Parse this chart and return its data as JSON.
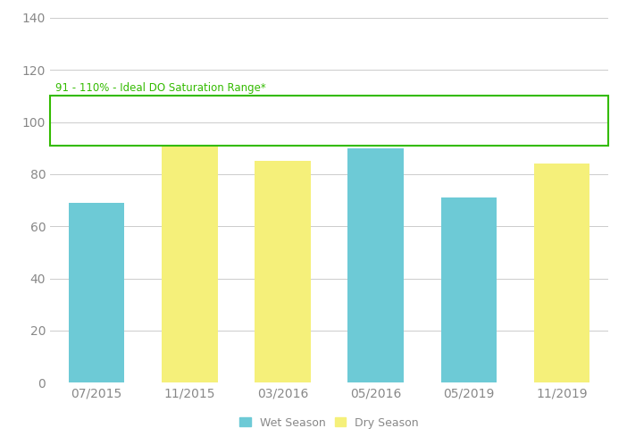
{
  "categories": [
    "07/2015",
    "11/2015",
    "03/2016",
    "05/2016",
    "05/2019",
    "11/2019"
  ],
  "values": [
    69,
    91,
    85,
    90,
    71,
    84
  ],
  "colors": [
    "#6DCAD6",
    "#F5F07A",
    "#F5F07A",
    "#6DCAD6",
    "#6DCAD6",
    "#F5F07A"
  ],
  "ylim": [
    0,
    140
  ],
  "yticks": [
    0,
    20,
    40,
    60,
    80,
    100,
    120,
    140
  ],
  "ideal_range_min": 91,
  "ideal_range_max": 110,
  "ideal_label": "91 - 110% - Ideal DO Saturation Range*",
  "ideal_color": "#33BB00",
  "legend_wet": "Wet Season",
  "legend_dry": "Dry Season",
  "wet_color": "#6DCAD6",
  "dry_color": "#F5F07A",
  "background_color": "#ffffff",
  "grid_color": "#cccccc",
  "bar_width": 0.6,
  "tick_fontsize": 10,
  "tick_color": "#888888",
  "legend_fontsize": 9
}
